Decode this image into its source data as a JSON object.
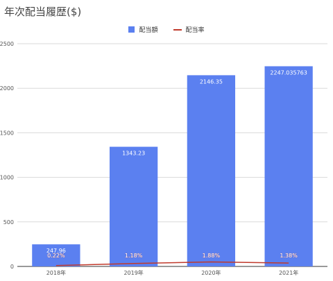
{
  "chart_data": {
    "type": "bar",
    "title": "年次配当履歴($)",
    "categories": [
      "2018年",
      "2019年",
      "2020年",
      "2021年"
    ],
    "series": [
      {
        "name": "配当額",
        "kind": "bar",
        "values": [
          247.96,
          1343.23,
          2146.35,
          2247.035763
        ],
        "labels": [
          "247.96",
          "1343.23",
          "2146.35",
          "2247.035763"
        ],
        "color": "#5b80f0"
      },
      {
        "name": "配当率",
        "kind": "line",
        "values": [
          0.22,
          1.18,
          1.88,
          1.38
        ],
        "labels": [
          "0.22%",
          "1.18%",
          "1.88%",
          "1.38%"
        ],
        "color": "#c0392b"
      }
    ],
    "ylim": [
      0,
      2500
    ],
    "yticks": [
      "0",
      "500",
      "1000",
      "1500",
      "2000",
      "2500"
    ],
    "grid": true,
    "legend_position": "top-center"
  }
}
